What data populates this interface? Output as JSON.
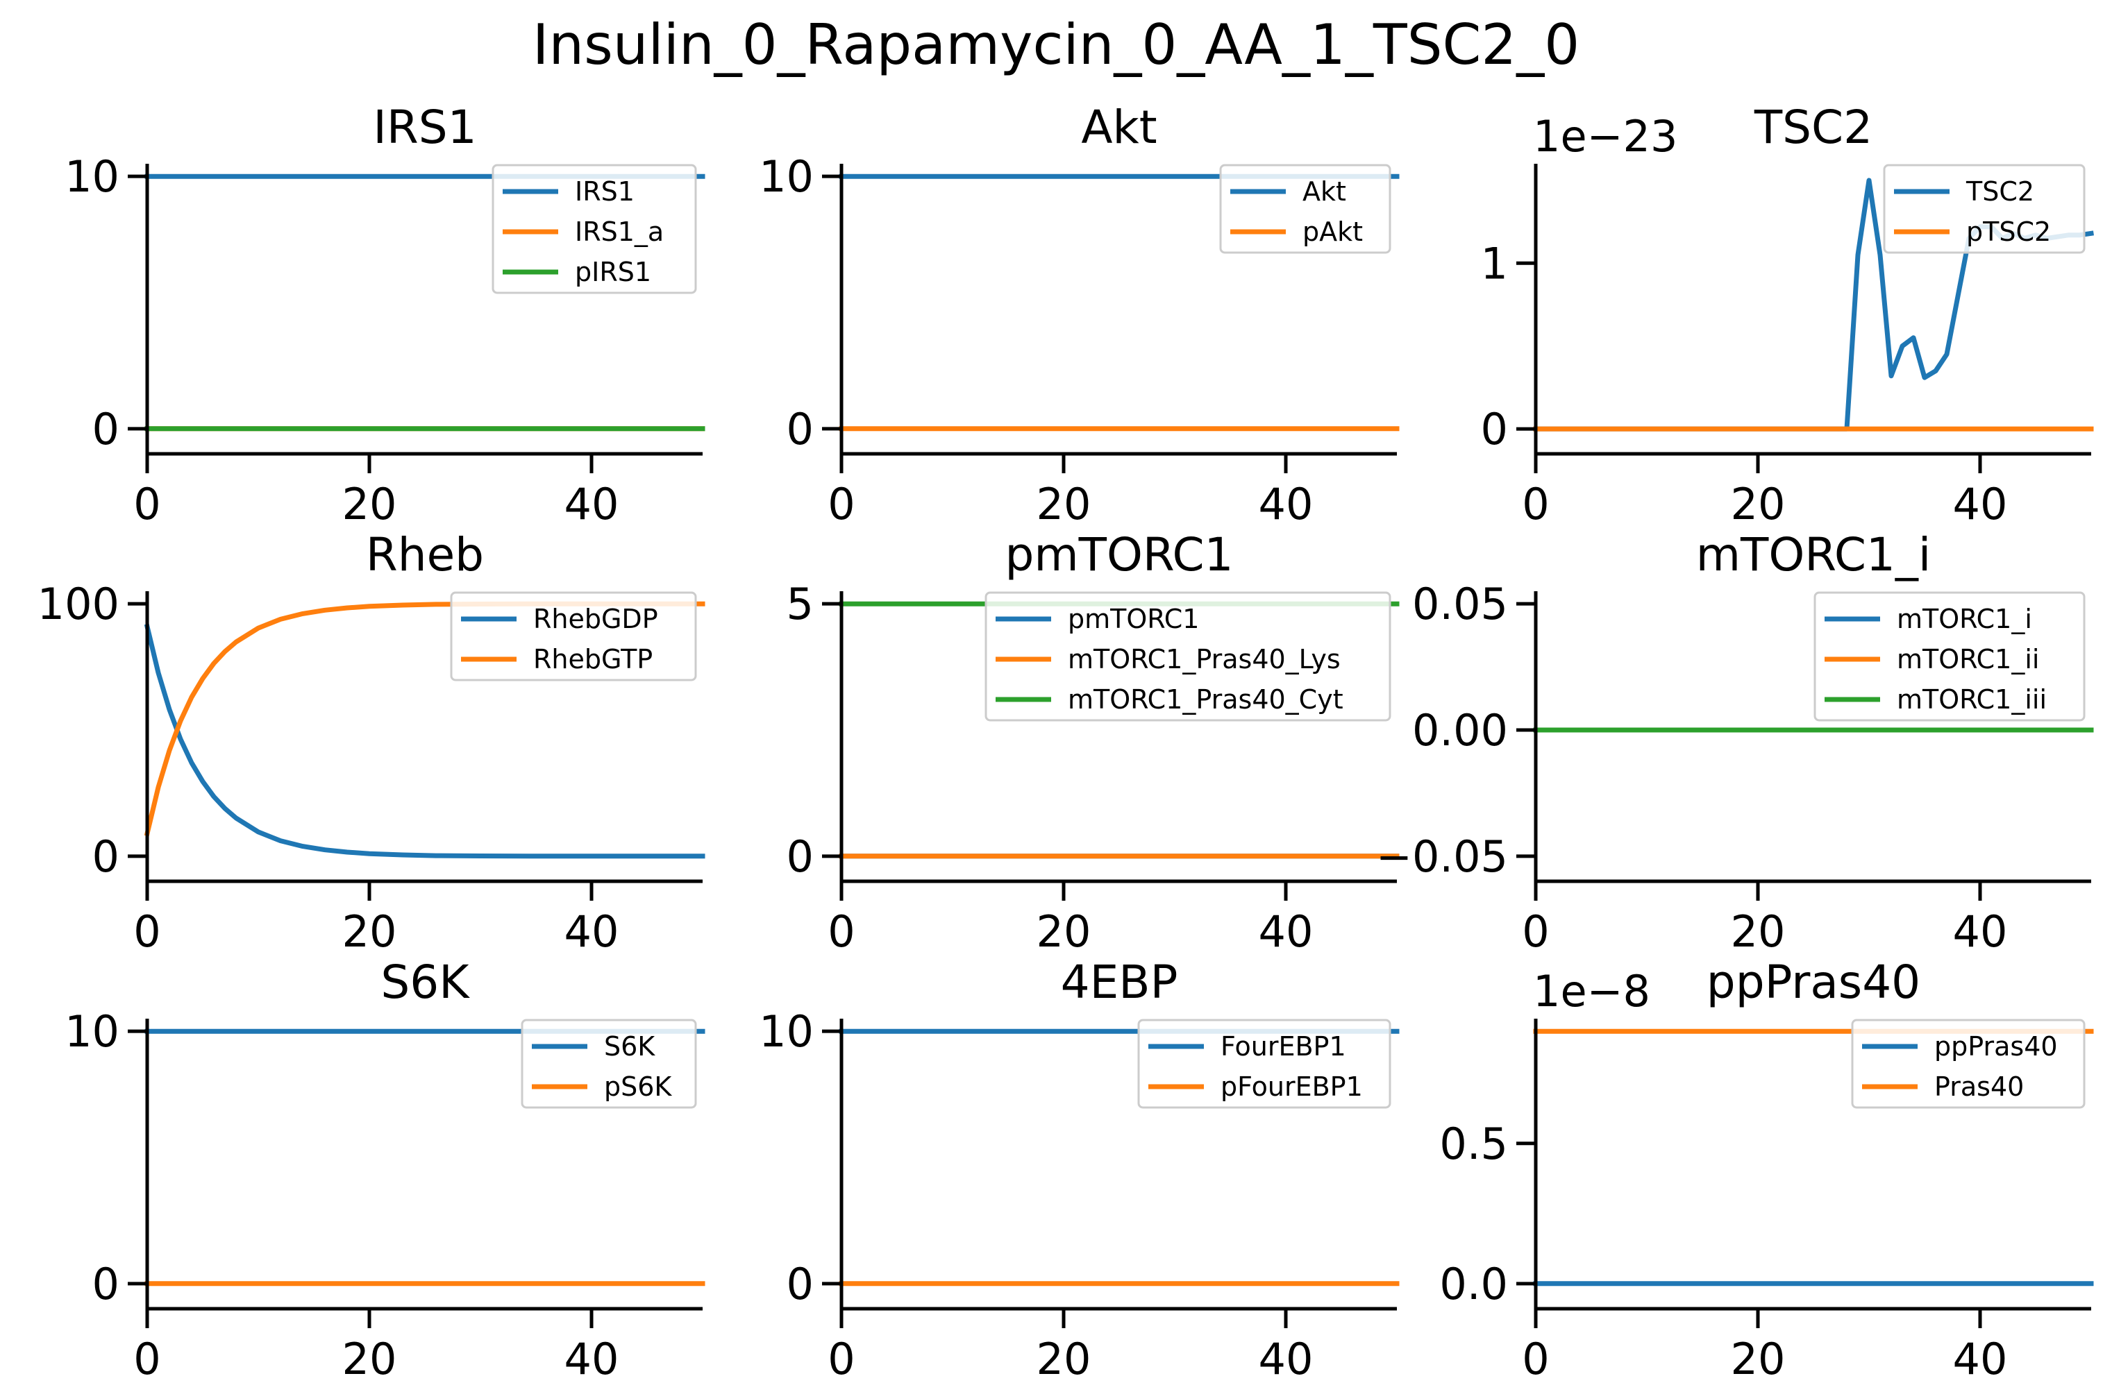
{
  "figure": {
    "title": "Insulin_0_Rapamycin_0_AA_1_TSC2_0"
  },
  "colors": {
    "c0": "#1f77b4",
    "c1": "#ff7f0e",
    "c2": "#2ca02c"
  },
  "chart_data": [
    {
      "type": "line",
      "title": "IRS1",
      "xlim": [
        0,
        50
      ],
      "ylim": [
        -0.5,
        10.5
      ],
      "xticks": [
        {
          "v": 0,
          "label": "0"
        },
        {
          "v": 20,
          "label": "20"
        },
        {
          "v": 40,
          "label": "40"
        }
      ],
      "yticks": [
        {
          "v": 0,
          "label": "0"
        },
        {
          "v": 10,
          "label": "10"
        }
      ],
      "legend": "top-right",
      "series": [
        {
          "name": "IRS1",
          "color": "c0",
          "x": [
            0,
            50
          ],
          "y": [
            10,
            10
          ]
        },
        {
          "name": "IRS1_a",
          "color": "c1",
          "x": [
            0,
            50
          ],
          "y": [
            0,
            0
          ]
        },
        {
          "name": "pIRS1",
          "color": "c2",
          "x": [
            0,
            50
          ],
          "y": [
            0,
            0
          ]
        }
      ]
    },
    {
      "type": "line",
      "title": "Akt",
      "xlim": [
        0,
        50
      ],
      "ylim": [
        -0.5,
        10.5
      ],
      "xticks": [
        {
          "v": 0,
          "label": "0"
        },
        {
          "v": 20,
          "label": "20"
        },
        {
          "v": 40,
          "label": "40"
        }
      ],
      "yticks": [
        {
          "v": 0,
          "label": "0"
        },
        {
          "v": 10,
          "label": "10"
        }
      ],
      "legend": "top-right",
      "series": [
        {
          "name": "Akt",
          "color": "c0",
          "x": [
            0,
            50
          ],
          "y": [
            10,
            10
          ]
        },
        {
          "name": "pAkt",
          "color": "c1",
          "x": [
            0,
            50
          ],
          "y": [
            0,
            0
          ]
        }
      ]
    },
    {
      "type": "line",
      "title": "TSC2",
      "offset_text": "1e−23",
      "xlim": [
        0,
        50
      ],
      "ylim": [
        -0.075,
        1.6
      ],
      "xticks": [
        {
          "v": 0,
          "label": "0"
        },
        {
          "v": 20,
          "label": "20"
        },
        {
          "v": 40,
          "label": "40"
        }
      ],
      "yticks": [
        {
          "v": 0,
          "label": "0"
        },
        {
          "v": 1,
          "label": "1"
        }
      ],
      "legend": "top-right",
      "series": [
        {
          "name": "TSC2",
          "color": "c0",
          "x": [
            0,
            28,
            29,
            30,
            31,
            32,
            33,
            34,
            35,
            36,
            37,
            38,
            39,
            40,
            41,
            42,
            43,
            44,
            45,
            46,
            47,
            48,
            49,
            50
          ],
          "y": [
            0,
            0,
            1.05,
            1.5,
            1.05,
            0.32,
            0.5,
            0.55,
            0.31,
            0.35,
            0.45,
            0.8,
            1.15,
            1.22,
            1.22,
            1.15,
            1.18,
            1.15,
            1.17,
            1.15,
            1.16,
            1.17,
            1.17,
            1.18
          ]
        },
        {
          "name": "pTSC2",
          "color": "c1",
          "x": [
            0,
            50
          ],
          "y": [
            0,
            0
          ]
        }
      ]
    },
    {
      "type": "line",
      "title": "Rheb",
      "xlim": [
        0,
        50
      ],
      "ylim": [
        -5,
        105
      ],
      "xticks": [
        {
          "v": 0,
          "label": "0"
        },
        {
          "v": 20,
          "label": "20"
        },
        {
          "v": 40,
          "label": "40"
        }
      ],
      "yticks": [
        {
          "v": 0,
          "label": "0"
        },
        {
          "v": 100,
          "label": "100"
        }
      ],
      "legend": "top-right",
      "series": [
        {
          "name": "RhebGDP",
          "color": "c0",
          "x": [
            0,
            1,
            2,
            3,
            4,
            5,
            6,
            7,
            8,
            10,
            12,
            14,
            16,
            18,
            20,
            23,
            26,
            30,
            35,
            40,
            45,
            50
          ],
          "y": [
            91,
            72.7,
            58.1,
            46.4,
            37.0,
            29.6,
            23.6,
            18.9,
            15.1,
            9.6,
            6.1,
            3.9,
            2.5,
            1.6,
            1.0,
            0.5,
            0.2,
            0.1,
            0.0,
            0.0,
            0.0,
            0.0
          ]
        },
        {
          "name": "RhebGTP",
          "color": "c1",
          "x": [
            0,
            1,
            2,
            3,
            4,
            5,
            6,
            7,
            8,
            10,
            12,
            14,
            16,
            18,
            20,
            23,
            26,
            30,
            35,
            40,
            45,
            50
          ],
          "y": [
            9,
            27.3,
            41.9,
            53.6,
            63.0,
            70.4,
            76.4,
            81.1,
            84.9,
            90.4,
            93.9,
            96.1,
            97.5,
            98.4,
            99.0,
            99.5,
            99.8,
            99.9,
            100,
            100,
            100,
            100
          ]
        }
      ]
    },
    {
      "type": "line",
      "title": "pmTORC1",
      "xlim": [
        0,
        50
      ],
      "ylim": [
        -0.25,
        5.25
      ],
      "xticks": [
        {
          "v": 0,
          "label": "0"
        },
        {
          "v": 20,
          "label": "20"
        },
        {
          "v": 40,
          "label": "40"
        }
      ],
      "yticks": [
        {
          "v": 0,
          "label": "0"
        },
        {
          "v": 5,
          "label": "5"
        }
      ],
      "legend": "top-right",
      "series": [
        {
          "name": "pmTORC1",
          "color": "c0",
          "x": [
            0,
            50
          ],
          "y": [
            0,
            0
          ]
        },
        {
          "name": "mTORC1_Pras40_Lys",
          "color": "c1",
          "x": [
            0,
            50
          ],
          "y": [
            0,
            0
          ]
        },
        {
          "name": "mTORC1_Pras40_Cyt",
          "color": "c2",
          "x": [
            0,
            50
          ],
          "y": [
            5,
            5
          ]
        }
      ]
    },
    {
      "type": "line",
      "title": "mTORC1_i",
      "xlim": [
        0,
        50
      ],
      "ylim": [
        -0.055,
        0.055
      ],
      "xticks": [
        {
          "v": 0,
          "label": "0"
        },
        {
          "v": 20,
          "label": "20"
        },
        {
          "v": 40,
          "label": "40"
        }
      ],
      "yticks": [
        {
          "v": -0.05,
          "label": "−0.05"
        },
        {
          "v": 0,
          "label": "0.00"
        },
        {
          "v": 0.05,
          "label": "0.05"
        }
      ],
      "legend": "top-right",
      "series": [
        {
          "name": "mTORC1_i",
          "color": "c0",
          "x": [
            0,
            50
          ],
          "y": [
            0,
            0
          ]
        },
        {
          "name": "mTORC1_ii",
          "color": "c1",
          "x": [
            0,
            50
          ],
          "y": [
            0,
            0
          ]
        },
        {
          "name": "mTORC1_iii",
          "color": "c2",
          "x": [
            0,
            50
          ],
          "y": [
            0,
            0
          ]
        }
      ]
    },
    {
      "type": "line",
      "title": "S6K",
      "xlim": [
        0,
        50
      ],
      "ylim": [
        -0.5,
        10.5
      ],
      "xticks": [
        {
          "v": 0,
          "label": "0"
        },
        {
          "v": 20,
          "label": "20"
        },
        {
          "v": 40,
          "label": "40"
        }
      ],
      "yticks": [
        {
          "v": 0,
          "label": "0"
        },
        {
          "v": 10,
          "label": "10"
        }
      ],
      "legend": "top-right",
      "series": [
        {
          "name": "S6K",
          "color": "c0",
          "x": [
            0,
            50
          ],
          "y": [
            10,
            10
          ]
        },
        {
          "name": "pS6K",
          "color": "c1",
          "x": [
            0,
            50
          ],
          "y": [
            0,
            0
          ]
        }
      ]
    },
    {
      "type": "line",
      "title": "4EBP",
      "xlim": [
        0,
        50
      ],
      "ylim": [
        -0.5,
        10.5
      ],
      "xticks": [
        {
          "v": 0,
          "label": "0"
        },
        {
          "v": 20,
          "label": "20"
        },
        {
          "v": 40,
          "label": "40"
        }
      ],
      "yticks": [
        {
          "v": 0,
          "label": "0"
        },
        {
          "v": 10,
          "label": "10"
        }
      ],
      "legend": "top-right",
      "series": [
        {
          "name": "FourEBP1",
          "color": "c0",
          "x": [
            0,
            50
          ],
          "y": [
            10,
            10
          ]
        },
        {
          "name": "pFourEBP1",
          "color": "c1",
          "x": [
            0,
            50
          ],
          "y": [
            0,
            0
          ]
        }
      ]
    },
    {
      "type": "line",
      "title": "ppPras40",
      "offset_text": "1e−8",
      "xlim": [
        0,
        50
      ],
      "ylim": [
        -0.045,
        0.945
      ],
      "xticks": [
        {
          "v": 0,
          "label": "0"
        },
        {
          "v": 20,
          "label": "20"
        },
        {
          "v": 40,
          "label": "40"
        }
      ],
      "yticks": [
        {
          "v": 0,
          "label": "0.0"
        },
        {
          "v": 0.5,
          "label": "0.5"
        }
      ],
      "legend": "top-right",
      "series": [
        {
          "name": "ppPras40",
          "color": "c0",
          "x": [
            0,
            50
          ],
          "y": [
            0,
            0
          ]
        },
        {
          "name": "Pras40",
          "color": "c1",
          "x": [
            0,
            50
          ],
          "y": [
            0.9,
            0.9
          ]
        }
      ]
    }
  ]
}
